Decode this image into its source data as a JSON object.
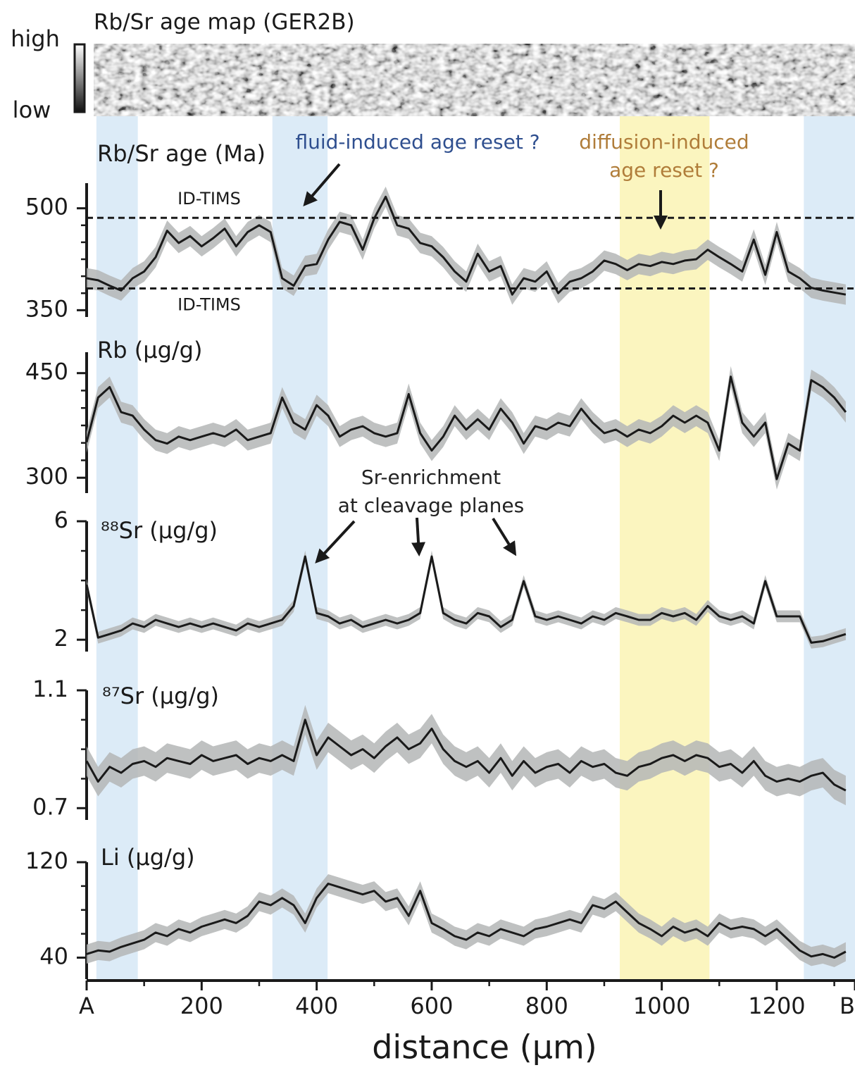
{
  "chart_data": {
    "type": "line",
    "map_title": "Rb/Sr age map (GER2B)",
    "map_high": "high",
    "map_low": "low",
    "xlabel": "distance (µm)",
    "xlim": [
      0,
      1336
    ],
    "xticks": [
      {
        "value": 0,
        "label": "A"
      },
      200,
      400,
      600,
      800,
      1000,
      1200,
      {
        "value": 1336,
        "label": "B"
      }
    ],
    "xminor": [
      100,
      300,
      500,
      700,
      900,
      1100,
      1300
    ],
    "highlights": [
      {
        "from": 17,
        "to": 89,
        "color": "#dcebf7"
      },
      {
        "from": 323,
        "to": 419,
        "color": "#dcebf7"
      },
      {
        "from": 927,
        "to": 1083,
        "color": "#fbf5bf"
      },
      {
        "from": 1247,
        "to": 1336,
        "color": "#dcebf7"
      }
    ],
    "annotations": [
      {
        "text": "fluid-induced age reset ?",
        "color": "#2f4f8f"
      },
      {
        "text": "diffusion-induced",
        "color": "#b07d3a"
      },
      {
        "text": "age reset ?",
        "color": "#b07d3a"
      },
      {
        "text": "Sr-enrichment",
        "color": "#222222"
      },
      {
        "text": "at cleavage planes",
        "color": "#222222"
      }
    ],
    "line_color": "#1a1a1a",
    "band_color": "#b4b6b6",
    "x": [
      0,
      20,
      40,
      60,
      80,
      100,
      120,
      140,
      160,
      180,
      200,
      220,
      240,
      260,
      280,
      300,
      320,
      340,
      360,
      380,
      400,
      420,
      440,
      460,
      480,
      500,
      520,
      540,
      560,
      580,
      600,
      620,
      640,
      660,
      680,
      700,
      720,
      740,
      760,
      780,
      800,
      820,
      840,
      860,
      880,
      900,
      920,
      940,
      960,
      980,
      1000,
      1020,
      1040,
      1060,
      1080,
      1100,
      1120,
      1140,
      1160,
      1180,
      1200,
      1220,
      1240,
      1260,
      1280,
      1300,
      1320
    ],
    "panels": [
      {
        "ylabel": "Rb/Sr age (Ma)",
        "ylim": [
          340,
          537
        ],
        "yticks": [
          350,
          500
        ],
        "yminor": [
          375,
          400,
          425,
          450,
          475
        ],
        "error": 15,
        "reference_lines": [
          {
            "value": 486,
            "label": "ID-TIMS"
          },
          {
            "value": 382,
            "label": "ID-TIMS"
          }
        ],
        "values": [
          397,
          394,
          386,
          379,
          397,
          407,
          428,
          467,
          449,
          459,
          444,
          456,
          470,
          444,
          465,
          475,
          465,
          397,
          386,
          415,
          418,
          454,
          480,
          475,
          439,
          485,
          517,
          475,
          470,
          449,
          444,
          428,
          407,
          392,
          433,
          407,
          415,
          373,
          397,
          392,
          407,
          375,
          392,
          397,
          407,
          423,
          418,
          409,
          418,
          415,
          421,
          418,
          423,
          425,
          439,
          428,
          418,
          407,
          454,
          402,
          465,
          407,
          397,
          383,
          379,
          376,
          373
        ]
      },
      {
        "ylabel": "Rb (µg/g)",
        "ylim": [
          278,
          480
        ],
        "yticks": [
          300,
          450
        ],
        "yminor": [
          325,
          350,
          375,
          400,
          425
        ],
        "error": 15,
        "values": [
          351,
          415,
          430,
          394,
          389,
          369,
          354,
          349,
          359,
          354,
          359,
          364,
          359,
          369,
          354,
          359,
          364,
          415,
          379,
          369,
          404,
          389,
          359,
          369,
          374,
          364,
          359,
          364,
          420,
          364,
          339,
          359,
          389,
          369,
          384,
          369,
          399,
          379,
          349,
          374,
          369,
          379,
          374,
          399,
          379,
          364,
          369,
          359,
          369,
          364,
          374,
          389,
          379,
          389,
          379,
          339,
          445,
          379,
          359,
          379,
          298,
          349,
          339,
          440,
          430,
          415,
          394
        ]
      },
      {
        "ylabel": "⁸⁸Sr (µg/g)",
        "ylim": [
          1.6,
          6
        ],
        "yticks": [
          2,
          6
        ],
        "yminor": [
          3,
          4,
          5
        ],
        "error": 0.2,
        "values": [
          3.86,
          2.07,
          2.19,
          2.31,
          2.55,
          2.43,
          2.67,
          2.55,
          2.43,
          2.55,
          2.43,
          2.55,
          2.43,
          2.31,
          2.55,
          2.43,
          2.55,
          2.67,
          3.14,
          4.81,
          2.9,
          2.79,
          2.55,
          2.67,
          2.43,
          2.55,
          2.67,
          2.55,
          2.67,
          2.9,
          4.81,
          2.9,
          2.67,
          2.55,
          2.9,
          2.79,
          2.43,
          2.67,
          3.98,
          2.79,
          2.67,
          2.79,
          2.67,
          2.55,
          2.79,
          2.67,
          2.9,
          2.79,
          2.67,
          2.67,
          2.9,
          2.79,
          2.9,
          2.67,
          3.14,
          2.79,
          2.67,
          2.79,
          2.55,
          3.98,
          2.79,
          2.79,
          2.79,
          1.9,
          1.95,
          2.07,
          2.19
        ]
      },
      {
        "ylabel": "⁸⁷Sr (µg/g)",
        "ylim": [
          0.66,
          1.1
        ],
        "yticks": [
          0.7,
          1.1
        ],
        "yminor": [
          0.8,
          0.9,
          1.0
        ],
        "error": 0.05,
        "values": [
          0.86,
          0.79,
          0.84,
          0.82,
          0.85,
          0.86,
          0.84,
          0.87,
          0.86,
          0.85,
          0.88,
          0.86,
          0.87,
          0.88,
          0.85,
          0.87,
          0.86,
          0.88,
          0.86,
          1.0,
          0.88,
          0.94,
          0.91,
          0.88,
          0.9,
          0.87,
          0.91,
          0.94,
          0.9,
          0.92,
          0.97,
          0.9,
          0.86,
          0.84,
          0.86,
          0.82,
          0.87,
          0.81,
          0.86,
          0.82,
          0.84,
          0.85,
          0.82,
          0.86,
          0.84,
          0.85,
          0.82,
          0.81,
          0.84,
          0.85,
          0.87,
          0.88,
          0.86,
          0.88,
          0.87,
          0.84,
          0.85,
          0.82,
          0.86,
          0.81,
          0.79,
          0.8,
          0.79,
          0.81,
          0.82,
          0.78,
          0.76
        ]
      },
      {
        "ylabel": "Li (µg/g)",
        "ylim": [
          22,
          120
        ],
        "yticks": [
          40,
          120
        ],
        "yminor": [
          60,
          80,
          100
        ],
        "error": 8,
        "values": [
          43,
          46,
          45,
          49,
          52,
          55,
          61,
          58,
          64,
          61,
          66,
          69,
          72,
          69,
          75,
          87,
          84,
          90,
          84,
          69,
          90,
          102,
          99,
          96,
          93,
          96,
          87,
          90,
          75,
          96,
          69,
          64,
          58,
          55,
          61,
          58,
          64,
          61,
          58,
          64,
          66,
          69,
          72,
          69,
          84,
          81,
          87,
          78,
          69,
          64,
          58,
          66,
          61,
          64,
          58,
          69,
          64,
          66,
          64,
          58,
          64,
          55,
          46,
          41,
          43,
          40,
          45
        ]
      }
    ]
  }
}
